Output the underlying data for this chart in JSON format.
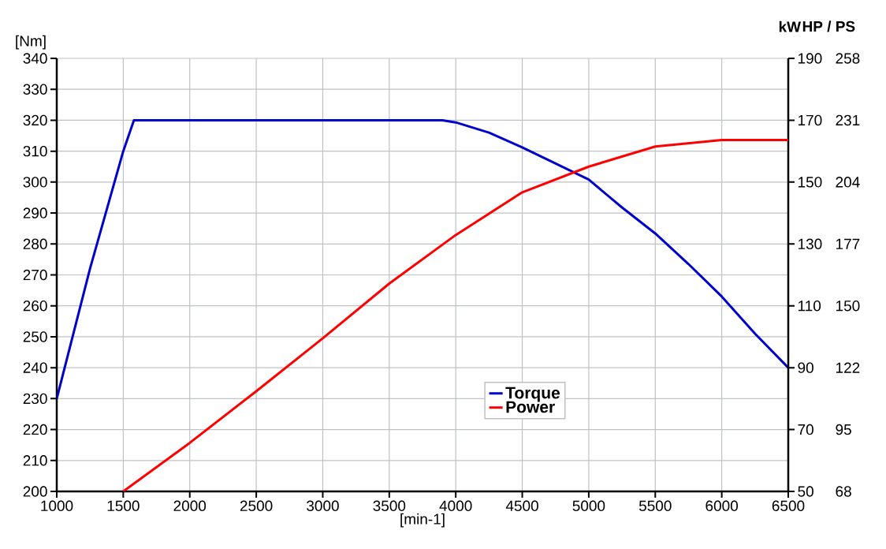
{
  "chart_data": {
    "type": "line",
    "xlabel": "[min-1]",
    "ylabel": "[Nm]",
    "y2label": "kW",
    "y3label": "HP / PS",
    "x": [
      1000,
      1250,
      1500,
      1580,
      3900,
      4000,
      4250,
      4500,
      5000,
      5250,
      5500,
      5750,
      6000,
      6250,
      6500
    ],
    "series": [
      {
        "name": "Torque",
        "color": "#0000cc",
        "values": [
          230,
          272,
          310,
          320,
          320,
          319.3,
          316,
          311.2,
          300.8,
          291.8,
          283.4,
          273.5,
          263,
          251,
          240
        ]
      },
      {
        "name": "Power",
        "color": "#ff0000",
        "axis": "y2",
        "x": [
          1500,
          2000,
          2500,
          3000,
          3500,
          4000,
          4500,
          5000,
          5500,
          6000,
          6500
        ],
        "values": [
          50,
          65.7,
          82.4,
          99.5,
          117.2,
          132.9,
          146.7,
          155,
          161.5,
          163.6,
          163.6
        ]
      }
    ],
    "xlim": [
      1000,
      6500
    ],
    "xticks": [
      1000,
      1500,
      2000,
      2500,
      3000,
      3500,
      4000,
      4500,
      5000,
      5500,
      6000,
      6500
    ],
    "ylim": [
      200,
      340
    ],
    "yticks": [
      200,
      210,
      220,
      230,
      240,
      250,
      260,
      270,
      280,
      290,
      300,
      310,
      320,
      330,
      340
    ],
    "y2lim": [
      50,
      190
    ],
    "y2ticks": [
      50,
      70,
      90,
      110,
      130,
      150,
      170,
      190
    ],
    "y3lim": [
      68,
      258.4
    ],
    "y3ticks": [
      68,
      {
        "value": 95.2,
        "label": "95"
      },
      {
        "value": 122.4,
        "label": "122"
      },
      {
        "value": 149.6,
        "label": "150"
      },
      {
        "value": 176.8,
        "label": "177"
      },
      204,
      {
        "value": 231.2,
        "label": "231"
      },
      {
        "value": 258.4,
        "label": "258"
      }
    ],
    "grid": true,
    "legend": "bottom",
    "marker": "none",
    "line_style": "solid"
  }
}
